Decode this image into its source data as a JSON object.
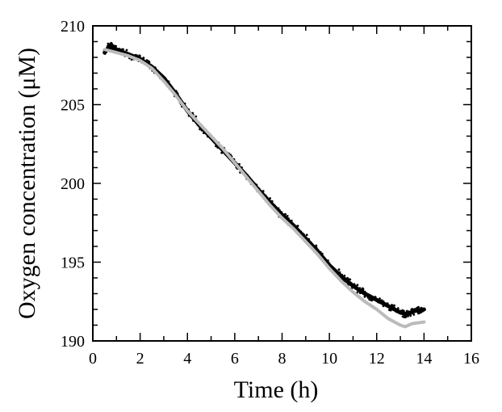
{
  "chart_data": {
    "type": "line",
    "title": "",
    "xlabel": "Time (h)",
    "ylabel": "Oxygen concentration (μM)",
    "xlim": [
      0,
      16
    ],
    "ylim": [
      190,
      210
    ],
    "xticks": [
      0,
      2,
      4,
      6,
      8,
      10,
      12,
      14,
      16
    ],
    "yticks": [
      190,
      195,
      200,
      205,
      210
    ],
    "grid": false,
    "legend": "none",
    "series": [
      {
        "color": "#000000",
        "style": "noisy-points",
        "x": [
          0.5,
          0.75,
          1.0,
          1.5,
          2.0,
          2.5,
          3.0,
          3.5,
          4.0,
          4.5,
          5.0,
          5.5,
          6.0,
          6.5,
          7.0,
          7.5,
          8.0,
          8.5,
          9.0,
          9.5,
          10.0,
          10.5,
          11.0,
          11.5,
          12.0,
          12.5,
          13.0,
          13.3,
          13.6,
          14.0
        ],
        "y": [
          208.3,
          208.8,
          208.5,
          208.2,
          207.9,
          207.4,
          206.7,
          205.7,
          204.6,
          203.7,
          202.9,
          202.1,
          201.3,
          200.5,
          199.6,
          198.8,
          198.0,
          197.3,
          196.5,
          195.7,
          194.8,
          194.1,
          193.5,
          193.0,
          192.6,
          192.2,
          191.8,
          191.7,
          191.9,
          192.0
        ]
      },
      {
        "color": "#bbbbbb",
        "style": "smooth-line",
        "x": [
          0.5,
          1.0,
          1.5,
          2.0,
          2.5,
          3.0,
          3.5,
          4.0,
          4.5,
          5.0,
          5.5,
          6.0,
          6.5,
          7.0,
          7.5,
          8.0,
          8.5,
          9.0,
          9.5,
          10.0,
          10.5,
          11.0,
          11.5,
          12.0,
          12.5,
          13.0,
          13.2,
          13.5,
          14.0
        ],
        "y": [
          208.5,
          208.3,
          208.1,
          207.8,
          207.3,
          206.5,
          205.6,
          204.6,
          203.8,
          203.0,
          202.2,
          201.3,
          200.4,
          199.5,
          198.6,
          197.8,
          197.1,
          196.3,
          195.5,
          194.6,
          193.8,
          193.1,
          192.5,
          192.0,
          191.4,
          191.0,
          190.9,
          191.1,
          191.2
        ]
      }
    ]
  }
}
